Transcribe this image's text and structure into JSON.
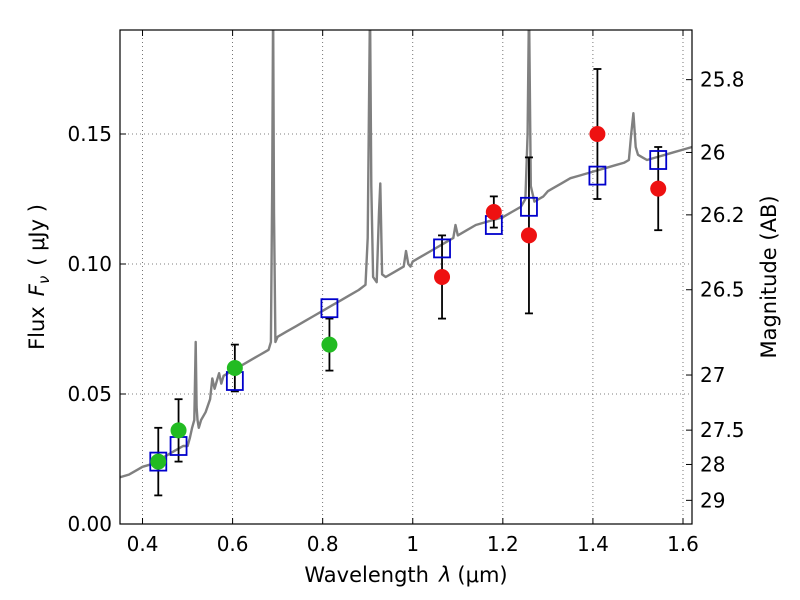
{
  "chart_data": {
    "type": "scatter",
    "title": "",
    "xlabel": "Wavelength  λ (μm)",
    "ylabel": "Flux  F_ν  ( μJy )",
    "ylabel_parts": {
      "prefix": "Flux",
      "var": "F",
      "sub": "ν",
      "unit": "( μJy )"
    },
    "xlabel_parts": {
      "prefix": "Wavelength",
      "var": "λ",
      "unit": "(μm)"
    },
    "y2label": "Magnitude (AB)",
    "xlim": [
      0.35,
      1.62
    ],
    "ylim": [
      0.0,
      0.19
    ],
    "grid": true,
    "xticks": [
      0.4,
      0.6,
      0.8,
      1.0,
      1.2,
      1.4,
      1.6
    ],
    "xtick_labels": [
      "0.4",
      "0.6",
      "0.8",
      "1",
      "1.2",
      "1.4",
      "1.6"
    ],
    "yticks": [
      0.0,
      0.05,
      0.1,
      0.15
    ],
    "ytick_labels": [
      "0.00",
      "0.05",
      "0.10",
      "0.15"
    ],
    "mag_ticks": [
      {
        "value": 0.1709,
        "label": "25.8"
      },
      {
        "value": 0.1429,
        "label": "26"
      },
      {
        "value": 0.1189,
        "label": "26.2"
      },
      {
        "value": 0.0901,
        "label": "26.5"
      },
      {
        "value": 0.0573,
        "label": "27"
      },
      {
        "value": 0.0361,
        "label": "27.5"
      },
      {
        "value": 0.0229,
        "label": "28"
      },
      {
        "value": 0.0091,
        "label": "29"
      }
    ],
    "colors": {
      "model": "#808080",
      "green": "#22bb22",
      "red": "#ee1111",
      "model_box": "#0000cc",
      "grid": "#555555",
      "errorbar": "#000000"
    },
    "series": [
      {
        "name": "model_spectrum",
        "kind": "line",
        "x": [
          0.35,
          0.37,
          0.39,
          0.4,
          0.42,
          0.43,
          0.44,
          0.45,
          0.46,
          0.47,
          0.48,
          0.49,
          0.5,
          0.505,
          0.51,
          0.515,
          0.518,
          0.52,
          0.522,
          0.525,
          0.53,
          0.54,
          0.55,
          0.555,
          0.56,
          0.565,
          0.57,
          0.575,
          0.58,
          0.59,
          0.6,
          0.61,
          0.62,
          0.63,
          0.64,
          0.65,
          0.66,
          0.67,
          0.68,
          0.685,
          0.688,
          0.69,
          0.692,
          0.695,
          0.7,
          0.72,
          0.74,
          0.76,
          0.78,
          0.8,
          0.82,
          0.84,
          0.86,
          0.88,
          0.895,
          0.9,
          0.905,
          0.908,
          0.912,
          0.92,
          0.925,
          0.928,
          0.932,
          0.94,
          0.96,
          0.98,
          0.985,
          0.99,
          0.995,
          1.0,
          1.02,
          1.04,
          1.06,
          1.08,
          1.09,
          1.095,
          1.1,
          1.12,
          1.14,
          1.16,
          1.18,
          1.2,
          1.22,
          1.24,
          1.25,
          1.255,
          1.258,
          1.262,
          1.27,
          1.29,
          1.3,
          1.31,
          1.33,
          1.35,
          1.37,
          1.39,
          1.41,
          1.43,
          1.45,
          1.47,
          1.48,
          1.485,
          1.49,
          1.495,
          1.5,
          1.51,
          1.52,
          1.54,
          1.56,
          1.58,
          1.6,
          1.62
        ],
        "y": [
          0.018,
          0.019,
          0.021,
          0.022,
          0.023,
          0.024,
          0.025,
          0.026,
          0.027,
          0.028,
          0.029,
          0.03,
          0.03,
          0.033,
          0.037,
          0.04,
          0.07,
          0.045,
          0.04,
          0.037,
          0.04,
          0.043,
          0.048,
          0.056,
          0.052,
          0.055,
          0.058,
          0.054,
          0.057,
          0.058,
          0.059,
          0.06,
          0.061,
          0.062,
          0.063,
          0.064,
          0.065,
          0.066,
          0.067,
          0.07,
          0.13,
          0.2,
          0.12,
          0.07,
          0.072,
          0.074,
          0.076,
          0.078,
          0.08,
          0.082,
          0.084,
          0.086,
          0.088,
          0.09,
          0.092,
          0.11,
          0.2,
          0.13,
          0.095,
          0.093,
          0.12,
          0.131,
          0.096,
          0.095,
          0.097,
          0.099,
          0.105,
          0.1,
          0.099,
          0.101,
          0.103,
          0.105,
          0.107,
          0.109,
          0.11,
          0.115,
          0.111,
          0.113,
          0.115,
          0.116,
          0.117,
          0.118,
          0.12,
          0.122,
          0.125,
          0.15,
          0.2,
          0.13,
          0.124,
          0.126,
          0.128,
          0.129,
          0.131,
          0.133,
          0.134,
          0.135,
          0.136,
          0.137,
          0.138,
          0.139,
          0.14,
          0.15,
          0.158,
          0.145,
          0.142,
          0.141,
          0.14,
          0.141,
          0.142,
          0.143,
          0.144,
          0.145
        ]
      },
      {
        "name": "model_photometry",
        "kind": "box",
        "x": [
          0.435,
          0.48,
          0.605,
          0.815,
          1.065,
          1.18,
          1.258,
          1.41,
          1.545
        ],
        "y": [
          0.024,
          0.03,
          0.055,
          0.083,
          0.106,
          0.115,
          0.122,
          0.134,
          0.14
        ]
      },
      {
        "name": "observed_optical",
        "kind": "point",
        "color_key": "green",
        "x": [
          0.435,
          0.48,
          0.605,
          0.815
        ],
        "y": [
          0.024,
          0.036,
          0.06,
          0.069
        ],
        "yerr": [
          0.013,
          0.012,
          0.009,
          0.01
        ]
      },
      {
        "name": "observed_nir",
        "kind": "point",
        "color_key": "red",
        "x": [
          1.065,
          1.18,
          1.258,
          1.41,
          1.545
        ],
        "y": [
          0.095,
          0.12,
          0.111,
          0.15,
          0.129
        ],
        "yerr": [
          0.016,
          0.006,
          0.03,
          0.025,
          0.016
        ]
      }
    ]
  }
}
